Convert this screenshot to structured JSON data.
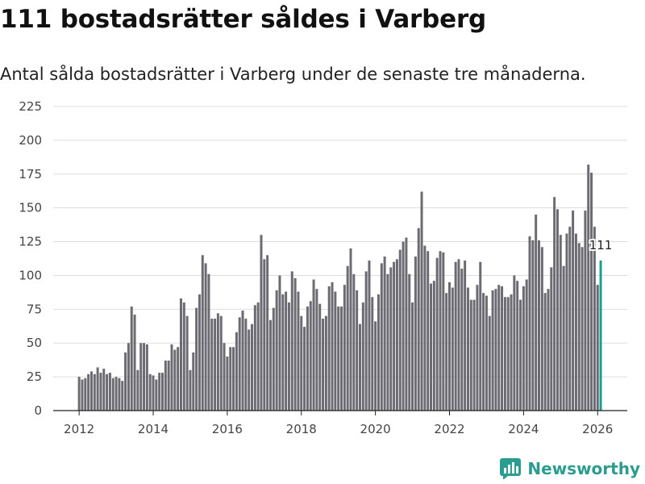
{
  "header": {
    "title": "111 bostadsrätter såldes i Varberg",
    "subtitle": "Antal sålda bostadsrätter i Varberg under de senaste tre månaderna."
  },
  "brand": {
    "name": "Newsworthy",
    "color": "#2a9d90"
  },
  "colors": {
    "bar": "#6b6b72",
    "highlight": "#1a9e96"
  },
  "chart_data": {
    "type": "bar",
    "title": "111 bostadsrätter såldes i Varberg",
    "subtitle": "Antal sålda bostadsrätter i Varberg under de senaste tre månaderna.",
    "xlabel": "",
    "ylabel": "",
    "ylim": [
      0,
      225
    ],
    "xlim": [
      2011.3,
      2026.8
    ],
    "grid": true,
    "yticks": [
      0,
      25,
      50,
      75,
      100,
      125,
      150,
      175,
      200,
      225
    ],
    "xticks": [
      2012,
      2014,
      2016,
      2018,
      2020,
      2022,
      2024,
      2026
    ],
    "x_start": 2012.0,
    "x_step": 0.08333,
    "values": [
      25,
      23,
      24,
      27,
      29,
      27,
      32,
      28,
      31,
      27,
      28,
      24,
      25,
      24,
      22,
      43,
      50,
      77,
      71,
      30,
      50,
      50,
      49,
      27,
      26,
      23,
      28,
      28,
      37,
      37,
      49,
      45,
      47,
      83,
      80,
      70,
      30,
      43,
      76,
      86,
      115,
      109,
      101,
      68,
      68,
      72,
      70,
      50,
      40,
      47,
      47,
      58,
      69,
      74,
      68,
      60,
      64,
      78,
      80,
      130,
      112,
      115,
      67,
      76,
      89,
      100,
      86,
      88,
      80,
      103,
      98,
      88,
      70,
      62,
      77,
      81,
      97,
      90,
      79,
      68,
      70,
      92,
      95,
      88,
      77,
      77,
      93,
      107,
      120,
      101,
      89,
      64,
      80,
      103,
      111,
      84,
      66,
      86,
      109,
      114,
      101,
      106,
      110,
      112,
      119,
      125,
      128,
      101,
      80,
      114,
      135,
      162,
      122,
      118,
      94,
      96,
      113,
      118,
      117,
      87,
      95,
      91,
      110,
      112,
      105,
      111,
      91,
      82,
      82,
      93,
      110,
      87,
      85,
      70,
      89,
      90,
      93,
      92,
      84,
      84,
      86,
      100,
      96,
      82,
      92,
      97,
      129,
      126,
      145,
      126,
      121,
      87,
      90,
      106,
      158,
      149,
      130,
      107,
      131,
      136,
      148,
      131,
      124,
      121,
      148,
      182,
      176,
      136,
      93,
      111
    ],
    "highlight": {
      "index": 169,
      "value": 111,
      "label": "111"
    }
  }
}
